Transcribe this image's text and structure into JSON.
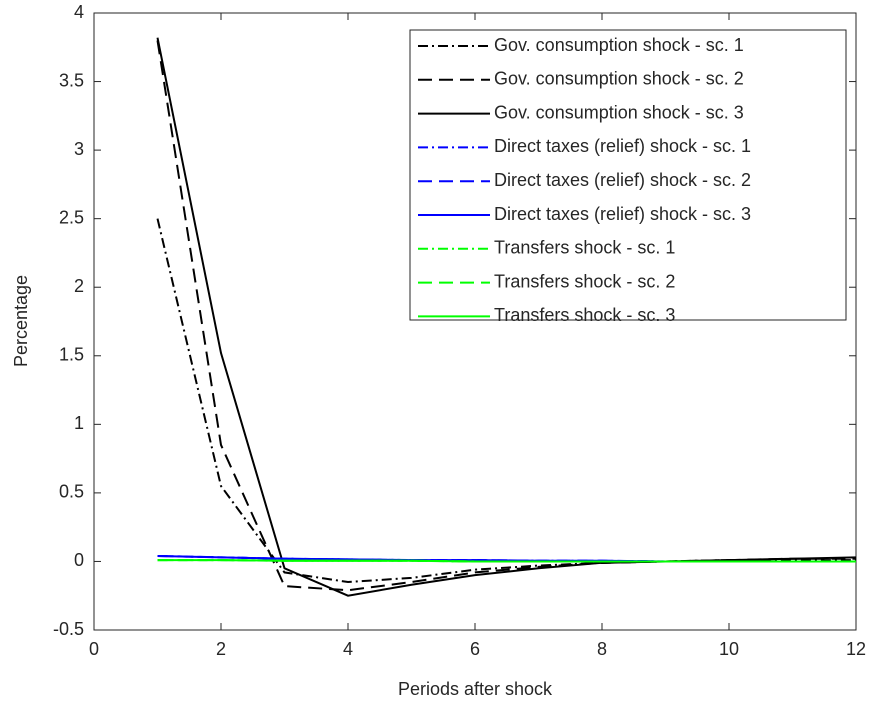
{
  "chart_data": {
    "type": "line",
    "x_label": "Periods after shock",
    "y_label": "Percentage",
    "x": [
      1,
      2,
      3,
      4,
      5,
      6,
      7,
      8,
      9,
      10,
      11,
      12
    ],
    "xlim": [
      0,
      12
    ],
    "xticks": [
      0,
      2,
      4,
      6,
      8,
      10,
      12
    ],
    "ylim": [
      -0.5,
      4
    ],
    "yticks": [
      -0.5,
      0,
      0.5,
      1,
      1.5,
      2,
      2.5,
      3,
      3.5,
      4
    ],
    "grid": false,
    "legend": "upper right",
    "series": [
      {
        "name": "Gov. consumption shock - sc. 1",
        "color": "#000000",
        "linestyle": "dashdot",
        "values": [
          2.5,
          0.55,
          -0.08,
          -0.15,
          -0.12,
          -0.06,
          -0.03,
          -0.01,
          0,
          0.01,
          0.01,
          0.01
        ]
      },
      {
        "name": "Gov. consumption shock - sc. 2",
        "color": "#000000",
        "linestyle": "dashed",
        "values": [
          3.8,
          0.85,
          -0.18,
          -0.21,
          -0.15,
          -0.08,
          -0.04,
          -0.01,
          0,
          0.01,
          0.02,
          0.02
        ]
      },
      {
        "name": "Gov. consumption shock - sc. 3",
        "color": "#000000",
        "linestyle": "solid",
        "values": [
          3.82,
          1.52,
          -0.05,
          -0.25,
          -0.17,
          -0.1,
          -0.05,
          -0.01,
          0,
          0.01,
          0.02,
          0.03
        ]
      },
      {
        "name": "Direct taxes (relief) shock - sc. 1",
        "color": "#0000ff",
        "linestyle": "dashdot",
        "values": [
          0.04,
          0.03,
          0.02,
          0.015,
          0.01,
          0.01,
          0.005,
          0.005,
          0,
          0,
          0,
          0
        ]
      },
      {
        "name": "Direct taxes (relief) shock - sc. 2",
        "color": "#0000ff",
        "linestyle": "dashed",
        "values": [
          0.04,
          0.03,
          0.02,
          0.015,
          0.01,
          0.01,
          0.005,
          0.005,
          0,
          0,
          0,
          0
        ]
      },
      {
        "name": "Direct taxes (relief) shock - sc. 3",
        "color": "#0000ff",
        "linestyle": "solid",
        "values": [
          0.04,
          0.03,
          0.02,
          0.015,
          0.01,
          0.01,
          0.005,
          0.005,
          0,
          0,
          0,
          0
        ]
      },
      {
        "name": "Transfers shock - sc. 1",
        "color": "#00ff00",
        "linestyle": "dashdot",
        "values": [
          0.01,
          0.01,
          0.005,
          0.005,
          0.005,
          0,
          0,
          0,
          0,
          0,
          0,
          0
        ]
      },
      {
        "name": "Transfers shock - sc. 2",
        "color": "#00ff00",
        "linestyle": "dashed",
        "values": [
          0.01,
          0.01,
          0.005,
          0.005,
          0.005,
          0,
          0,
          0,
          0,
          0,
          0,
          0
        ]
      },
      {
        "name": "Transfers shock - sc. 3",
        "color": "#00ff00",
        "linestyle": "solid",
        "values": [
          0.01,
          0.01,
          0.005,
          0.005,
          0.005,
          0,
          0,
          0,
          0,
          0,
          0,
          0
        ]
      }
    ]
  }
}
